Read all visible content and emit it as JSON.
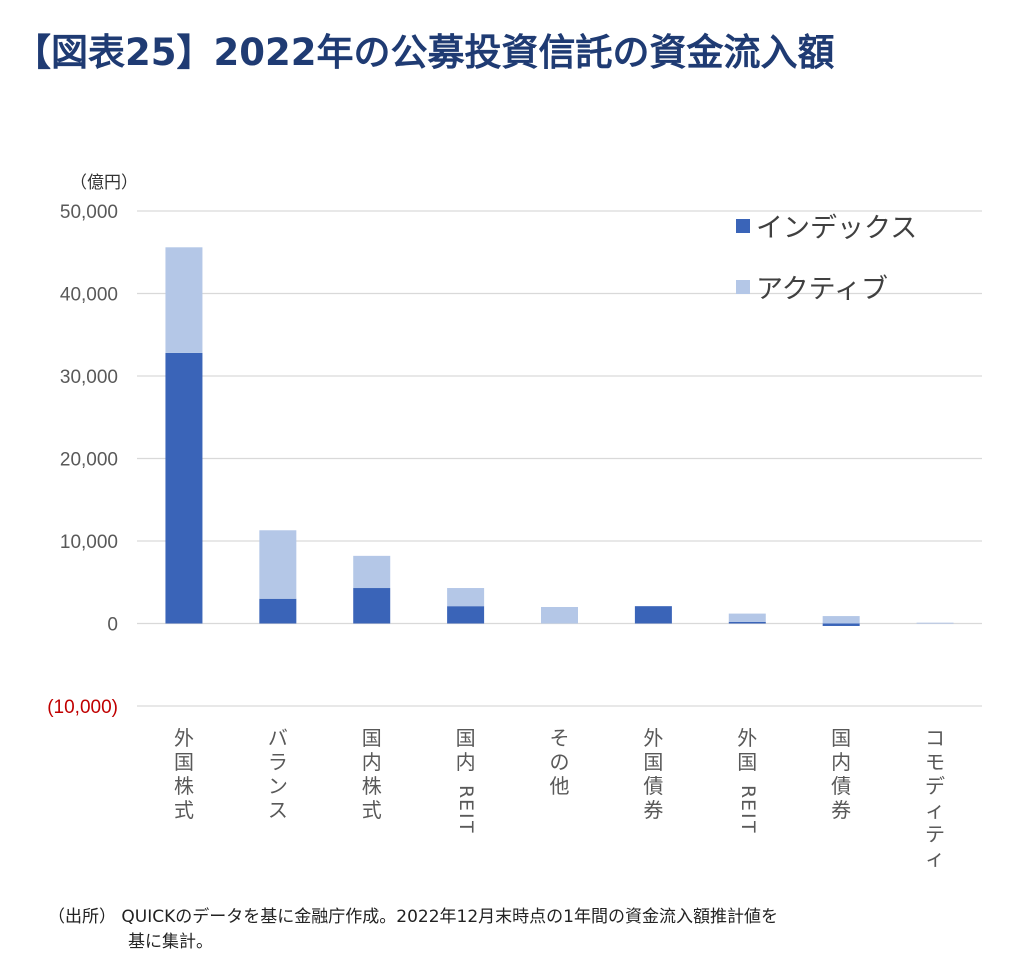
{
  "title": "【図表25】2022年の公募投資信託の資金流入額",
  "chart_data": {
    "type": "bar",
    "stacked": true,
    "unit_label": "（億円）",
    "ylim": [
      -10000,
      50000
    ],
    "y_ticks": [
      {
        "value": 50000,
        "label": "50,000"
      },
      {
        "value": 40000,
        "label": "40,000"
      },
      {
        "value": 30000,
        "label": "30,000"
      },
      {
        "value": 20000,
        "label": "20,000"
      },
      {
        "value": 10000,
        "label": "10,000"
      },
      {
        "value": 0,
        "label": "0"
      },
      {
        "value": -10000,
        "label": "(10,000)"
      }
    ],
    "negative_tick_color": "#c00000",
    "categories": [
      "外国株式",
      "バランス",
      "国内株式",
      "国内REIT",
      "その他",
      "外国債券",
      "外国REIT",
      "国内債券",
      "コモディティ"
    ],
    "series": [
      {
        "name": "インデックス",
        "color": "#3a64b8",
        "values": [
          32800,
          3000,
          4300,
          2100,
          0,
          2100,
          200,
          -300,
          0
        ]
      },
      {
        "name": "アクティブ",
        "color": "#b4c7e7",
        "values": [
          12800,
          8300,
          3900,
          2200,
          2000,
          0,
          1000,
          900,
          100
        ]
      }
    ],
    "grid": true,
    "legend_position": "top-right"
  },
  "source": {
    "line1": "（出所） QUICKのデータを基に金融庁作成。2022年12月末時点の1年間の資金流入額推計値を",
    "line2": "基に集計。"
  }
}
